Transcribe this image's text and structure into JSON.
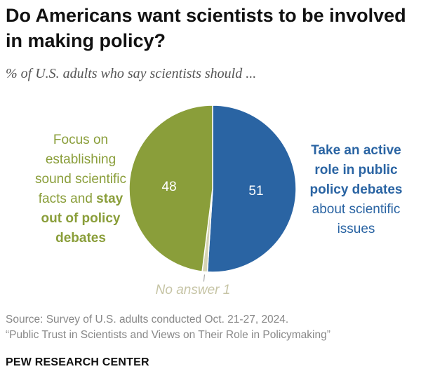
{
  "header": {
    "title": "Do Americans want scientists to be involved in making policy?",
    "subtitle": "% of U.S. adults who say scientists should ..."
  },
  "chart_data": {
    "type": "pie",
    "title": "Do Americans want scientists to be involved in making policy?",
    "subtitle": "% of U.S. adults who say scientists should ...",
    "slices": [
      {
        "label": "Take an active role in public policy debates about scientific issues",
        "value": 51,
        "color": "#2a64a3"
      },
      {
        "label": "No answer",
        "value": 1,
        "color": "#d6d4b5"
      },
      {
        "label": "Focus on establishing sound scientific facts and stay out of policy debates",
        "value": 48,
        "color": "#8a9e3a"
      }
    ]
  },
  "labels": {
    "left_line1": "Focus on",
    "left_line2": "establishing",
    "left_line3": "sound scientific",
    "left_line4_plain": "facts and ",
    "left_line4_bold": "stay",
    "left_line5": "out of policy",
    "left_line6": "debates",
    "right_line1": "Take an active",
    "right_line2": "role in public",
    "right_line3": "policy debates",
    "right_line4": "about scientific",
    "right_line5": "issues",
    "no_answer": "No answer 1",
    "value_left": "48",
    "value_right": "51"
  },
  "footer": {
    "source_line1": "Source: Survey of U.S. adults conducted Oct. 21-27, 2024.",
    "source_line2": "“Public Trust in Scientists and Views on Their Role in Policymaking”",
    "brand": "PEW RESEARCH CENTER"
  }
}
